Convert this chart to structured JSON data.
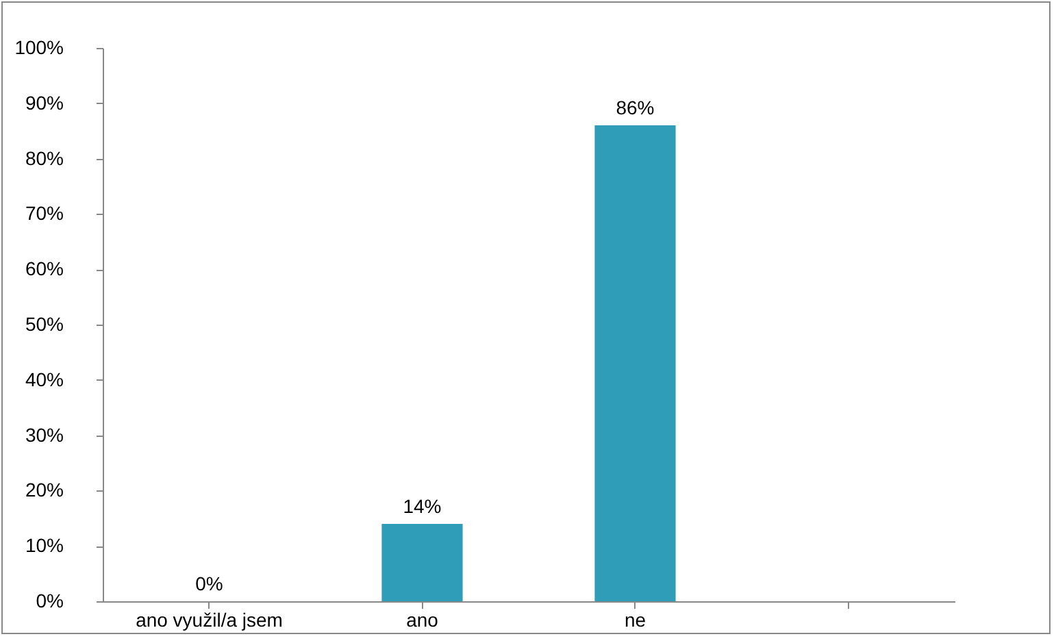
{
  "chart_data": {
    "type": "bar",
    "categories": [
      "ano využil/a jsem",
      "ano",
      "ne",
      null
    ],
    "values": [
      0,
      14,
      86,
      null
    ],
    "color": "#2f9cb8",
    "value_labels": [
      "0%",
      "14%",
      "86%",
      null
    ],
    "ylim": [
      0,
      100
    ],
    "yticks": [
      {
        "value": 0,
        "label": "0%"
      },
      {
        "value": 10,
        "label": "10%"
      },
      {
        "value": 20,
        "label": "20%"
      },
      {
        "value": 30,
        "label": "30%"
      },
      {
        "value": 40,
        "label": "40%"
      },
      {
        "value": 50,
        "label": "50%"
      },
      {
        "value": 60,
        "label": "60%"
      },
      {
        "value": 70,
        "label": "70%"
      },
      {
        "value": 80,
        "label": "80%"
      },
      {
        "value": 90,
        "label": "90%"
      },
      {
        "value": 100,
        "label": "100%"
      }
    ],
    "grid": false
  }
}
